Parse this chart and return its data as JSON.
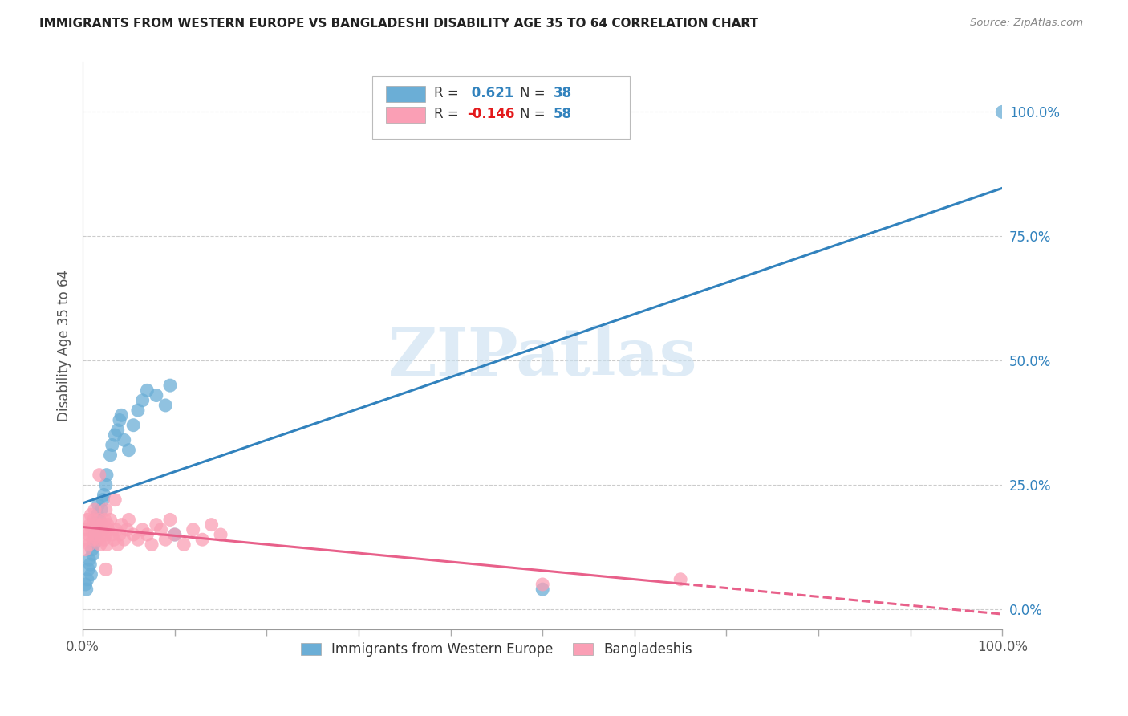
{
  "title": "IMMIGRANTS FROM WESTERN EUROPE VS BANGLADESHI DISABILITY AGE 35 TO 64 CORRELATION CHART",
  "source": "Source: ZipAtlas.com",
  "ylabel": "Disability Age 35 to 64",
  "xlim": [
    0,
    1.0
  ],
  "ylim": [
    -0.04,
    1.1
  ],
  "xtick_positions": [
    0,
    0.1,
    0.2,
    0.3,
    0.4,
    0.5,
    0.6,
    0.7,
    0.8,
    0.9,
    1.0
  ],
  "ytick_positions": [
    0,
    0.25,
    0.5,
    0.75,
    1.0
  ],
  "ytick_labels_right": [
    "0.0%",
    "25.0%",
    "50.0%",
    "75.0%",
    "100.0%"
  ],
  "blue_color": "#6baed6",
  "pink_color": "#fa9fb5",
  "blue_line_color": "#3182bd",
  "pink_line_color": "#e8608a",
  "blue_R": 0.621,
  "blue_N": 38,
  "pink_R": -0.146,
  "pink_N": 58,
  "legend_label_blue": "Immigrants from Western Europe",
  "legend_label_pink": "Bangladeshis",
  "watermark": "ZIPatlas",
  "blue_scatter_x": [
    0.003,
    0.004,
    0.005,
    0.006,
    0.007,
    0.008,
    0.009,
    0.01,
    0.011,
    0.012,
    0.013,
    0.015,
    0.016,
    0.017,
    0.018,
    0.02,
    0.022,
    0.023,
    0.025,
    0.026,
    0.03,
    0.032,
    0.035,
    0.038,
    0.04,
    0.042,
    0.045,
    0.05,
    0.055,
    0.06,
    0.065,
    0.07,
    0.08,
    0.09,
    0.095,
    0.5,
    1.0,
    0.1
  ],
  "blue_scatter_y": [
    0.05,
    0.04,
    0.06,
    0.08,
    0.1,
    0.09,
    0.07,
    0.12,
    0.11,
    0.13,
    0.15,
    0.17,
    0.19,
    0.21,
    0.18,
    0.2,
    0.22,
    0.23,
    0.25,
    0.27,
    0.31,
    0.33,
    0.35,
    0.36,
    0.38,
    0.39,
    0.34,
    0.32,
    0.37,
    0.4,
    0.42,
    0.44,
    0.43,
    0.41,
    0.45,
    0.04,
    1.0,
    0.15
  ],
  "pink_scatter_x": [
    0.002,
    0.003,
    0.004,
    0.005,
    0.006,
    0.007,
    0.008,
    0.009,
    0.01,
    0.011,
    0.012,
    0.013,
    0.014,
    0.015,
    0.016,
    0.017,
    0.018,
    0.019,
    0.02,
    0.021,
    0.022,
    0.023,
    0.024,
    0.025,
    0.026,
    0.027,
    0.028,
    0.03,
    0.032,
    0.034,
    0.036,
    0.038,
    0.04,
    0.042,
    0.045,
    0.048,
    0.05,
    0.055,
    0.06,
    0.065,
    0.07,
    0.075,
    0.08,
    0.085,
    0.09,
    0.095,
    0.1,
    0.11,
    0.12,
    0.13,
    0.14,
    0.15,
    0.018,
    0.025,
    0.035,
    0.5,
    0.65,
    0.025
  ],
  "pink_scatter_y": [
    0.14,
    0.12,
    0.16,
    0.18,
    0.15,
    0.13,
    0.17,
    0.19,
    0.16,
    0.14,
    0.18,
    0.2,
    0.15,
    0.17,
    0.14,
    0.16,
    0.18,
    0.13,
    0.15,
    0.17,
    0.16,
    0.14,
    0.18,
    0.15,
    0.13,
    0.17,
    0.16,
    0.18,
    0.15,
    0.14,
    0.16,
    0.13,
    0.15,
    0.17,
    0.14,
    0.16,
    0.18,
    0.15,
    0.14,
    0.16,
    0.15,
    0.13,
    0.17,
    0.16,
    0.14,
    0.18,
    0.15,
    0.13,
    0.16,
    0.14,
    0.17,
    0.15,
    0.27,
    0.2,
    0.22,
    0.05,
    0.06,
    0.08
  ]
}
